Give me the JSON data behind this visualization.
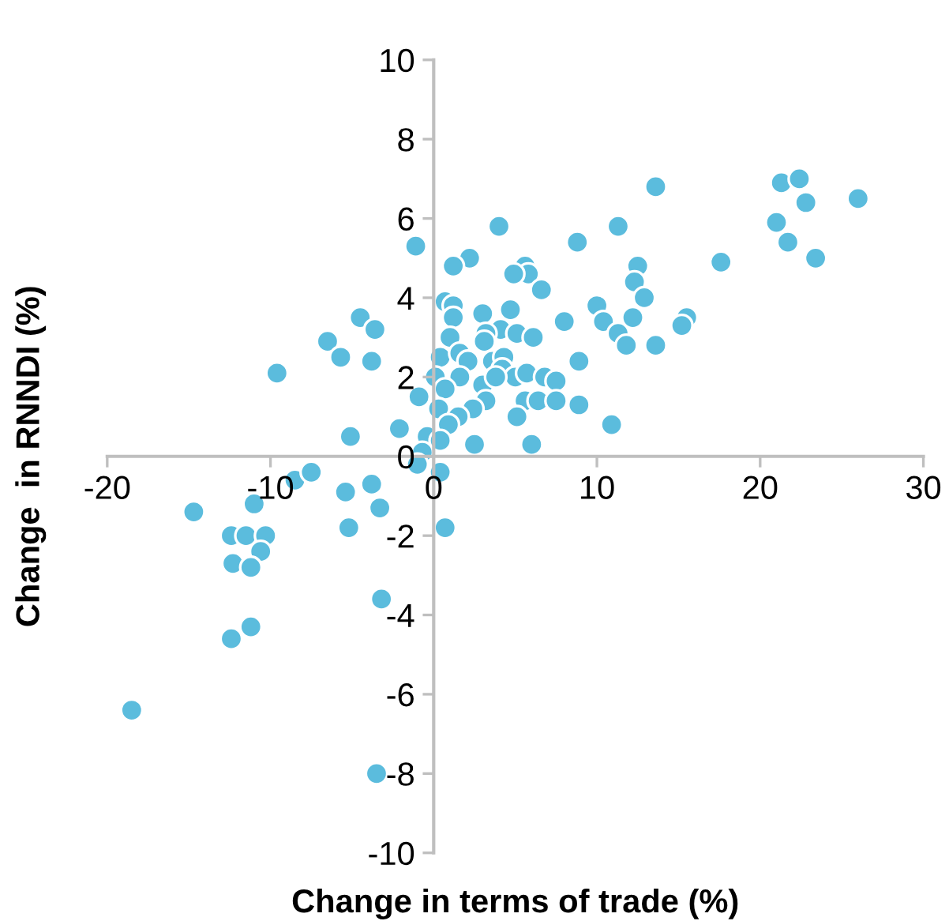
{
  "chart_data": {
    "type": "scatter",
    "xlabel": "Change in terms of trade (%)",
    "ylabel": "Change  in RNNDI (%)",
    "xlim": [
      -20,
      30
    ],
    "xticks": [
      -20,
      -10,
      0,
      10,
      20,
      30
    ],
    "ylim": [
      -10,
      10
    ],
    "yticks": [
      -10,
      -8,
      -6,
      -4,
      -2,
      0,
      2,
      4,
      6,
      8,
      10
    ],
    "grid": false,
    "marker": "circle",
    "series": [
      {
        "color": "#5bbcdd",
        "x": [
          -18.5,
          -14.7,
          -11,
          -12.4,
          -11.5,
          -10.3,
          -10.6,
          -12.3,
          -11.2,
          -12.4,
          -11.2,
          -9.6,
          -8.5,
          -7.5,
          -6.5,
          -5.7,
          -4.5,
          -3.6,
          -3.8,
          -5.1,
          -5.4,
          -5.2,
          -3.8,
          -3.3,
          -3.2,
          -3.5,
          -2.1,
          -1.1,
          -0.9,
          4.0,
          11.3,
          8.8,
          2.2,
          1.2,
          5.6,
          5.8,
          4.9,
          6.6,
          12.5,
          12.3,
          12.9,
          0.7,
          1.2,
          1.2,
          3.0,
          4.7,
          8.0,
          10.0,
          10.4,
          11.3,
          11.8,
          12.2,
          13.6,
          4.1,
          3.2,
          5.1,
          6.1,
          1.0,
          0.4,
          1.6,
          2.1,
          3.1,
          3.6,
          4.3,
          4.2,
          5.0,
          5.7,
          1.6,
          0.1,
          0.7,
          3.0,
          3.8,
          6.8,
          7.5,
          8.9,
          3.2,
          5.6,
          6.4,
          7.5,
          8.9,
          0.3,
          2.4,
          1.5,
          0.9,
          5.1,
          10.9,
          -0.4,
          0.4,
          2.5,
          6.0,
          -0.7,
          -1.0,
          0.4,
          0.7,
          13.6,
          21.3,
          22.4,
          22.8,
          26.0,
          21.0,
          21.7,
          23.4,
          17.6,
          15.5,
          15.2
        ],
        "values": [
          -6.4,
          -1.4,
          -1.2,
          -2,
          -2,
          -2,
          -2.4,
          -2.7,
          -2.8,
          -4.6,
          -4.3,
          2.1,
          -0.6,
          -0.4,
          2.9,
          2.5,
          3.5,
          3.2,
          2.4,
          0.5,
          -0.9,
          -1.8,
          -0.7,
          -1.3,
          -3.6,
          -8.0,
          0.7,
          5.3,
          1.5,
          5.8,
          5.8,
          5.4,
          5.0,
          4.8,
          4.8,
          4.6,
          4.6,
          4.2,
          4.8,
          4.4,
          4.0,
          3.9,
          3.8,
          3.5,
          3.6,
          3.7,
          3.4,
          3.8,
          3.4,
          3.1,
          2.8,
          3.5,
          2.8,
          3.2,
          3.1,
          3.1,
          3.0,
          3.0,
          2.5,
          2.6,
          2.4,
          2.9,
          2.4,
          2.5,
          2.2,
          2.0,
          2.1,
          2.0,
          2.0,
          1.7,
          1.8,
          2.0,
          2.0,
          1.9,
          2.4,
          1.4,
          1.4,
          1.4,
          1.4,
          1.3,
          1.2,
          1.2,
          1.0,
          0.8,
          1.0,
          0.8,
          0.5,
          0.4,
          0.3,
          0.3,
          0.1,
          -0.2,
          -0.4,
          -1.8,
          6.8,
          6.9,
          7.0,
          6.4,
          6.5,
          5.9,
          5.4,
          5.0,
          4.9,
          3.5,
          3.3
        ]
      }
    ]
  }
}
